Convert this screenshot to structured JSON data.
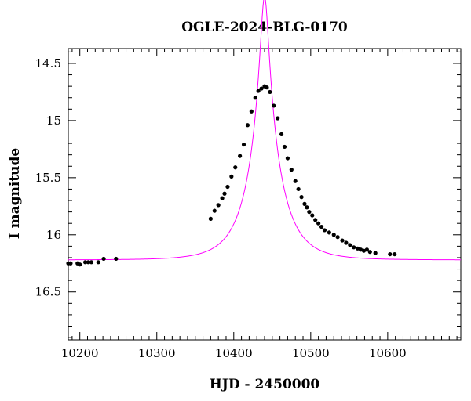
{
  "chart_data": {
    "type": "scatter",
    "title": "OGLE-2024-BLG-0170",
    "xlabel": "HJD - 2450000",
    "ylabel": "I magnitude",
    "xlim": [
      10185,
      10695
    ],
    "ylim": [
      16.92,
      14.37
    ],
    "y_inverted": true,
    "x_ticks": [
      10200,
      10300,
      10400,
      10500,
      10600
    ],
    "x_tick_labels": [
      "10200",
      "10300",
      "10400",
      "10500",
      "10600"
    ],
    "y_ticks": [
      14.5,
      15,
      15.5,
      16,
      16.5
    ],
    "y_tick_labels": [
      "14.5",
      "15",
      "15.5",
      "16",
      "16.5"
    ],
    "grid": false,
    "colors": {
      "points": "#000000",
      "model": "#ff00ff",
      "axes": "#000000"
    },
    "series": [
      {
        "kind": "points",
        "x": [
          10185,
          10188,
          10197,
          10200,
          10207,
          10211,
          10215,
          10224,
          10231,
          10247,
          10370,
          10375,
          10380,
          10385,
          10388,
          10392,
          10397,
          10402,
          10408,
          10413,
          10418,
          10423,
          10428,
          10432,
          10436,
          10440,
          10443,
          10447,
          10452,
          10457,
          10462,
          10466,
          10470,
          10475,
          10480,
          10484,
          10488,
          10492,
          10495,
          10498,
          10502,
          10506,
          10510,
          10514,
          10518,
          10524,
          10530,
          10535,
          10541,
          10546,
          10551,
          10556,
          10561,
          10565,
          10569,
          10573,
          10577,
          10584,
          10603,
          10609
        ],
        "y": [
          16.25,
          16.25,
          16.25,
          16.26,
          16.24,
          16.24,
          16.24,
          16.24,
          16.21,
          16.21,
          15.86,
          15.79,
          15.74,
          15.68,
          15.64,
          15.58,
          15.49,
          15.41,
          15.31,
          15.21,
          15.04,
          14.92,
          14.8,
          14.74,
          14.72,
          14.7,
          14.71,
          14.75,
          14.87,
          14.98,
          15.12,
          15.23,
          15.33,
          15.43,
          15.53,
          15.6,
          15.67,
          15.73,
          15.76,
          15.8,
          15.83,
          15.87,
          15.9,
          15.93,
          15.96,
          15.98,
          16.0,
          16.02,
          16.05,
          16.07,
          16.09,
          16.11,
          16.12,
          16.13,
          16.14,
          16.13,
          16.15,
          16.16,
          16.17,
          16.17
        ]
      },
      {
        "kind": "model-curve",
        "t0": 10440,
        "u0": 0.12,
        "tE": 40,
        "baseline": 16.22
      }
    ]
  }
}
